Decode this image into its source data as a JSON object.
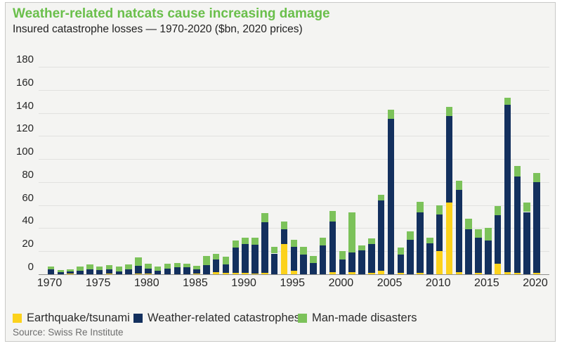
{
  "chart_data": {
    "type": "bar",
    "stacked": true,
    "title": "Weather-related natcats cause increasing damage",
    "subtitle": "Insured catastrophe losses — 1970-2020 ($bn, 2020 prices)",
    "source": "Source: Swiss Re Institute",
    "ylabel": "",
    "xlabel": "",
    "ylim": [
      0,
      180
    ],
    "y_ticks": [
      0,
      20,
      40,
      60,
      80,
      100,
      120,
      140,
      160,
      180
    ],
    "x_ticks": [
      1970,
      1975,
      1980,
      1985,
      1990,
      1995,
      2000,
      2005,
      2010,
      2015,
      2020
    ],
    "grid": "horizontal",
    "legend_position": "bottom",
    "years": [
      1970,
      1971,
      1972,
      1973,
      1974,
      1975,
      1976,
      1977,
      1978,
      1979,
      1980,
      1981,
      1982,
      1983,
      1984,
      1985,
      1986,
      1987,
      1988,
      1989,
      1990,
      1991,
      1992,
      1993,
      1994,
      1995,
      1996,
      1997,
      1998,
      1999,
      2000,
      2001,
      2002,
      2003,
      2004,
      2005,
      2006,
      2007,
      2008,
      2009,
      2010,
      2011,
      2012,
      2013,
      2014,
      2015,
      2016,
      2017,
      2018,
      2019,
      2020
    ],
    "series": [
      {
        "name": "Earthquake/tsunami",
        "color": "#fcd21c",
        "values": [
          0,
          0,
          0.5,
          0,
          0,
          0,
          0.5,
          0,
          0,
          0.5,
          0.5,
          0,
          0,
          0,
          0,
          0.5,
          0,
          2,
          1,
          1.5,
          1,
          0.5,
          1,
          0,
          26,
          3,
          0,
          0,
          0,
          2,
          0,
          2,
          0,
          1,
          3,
          0,
          1,
          0,
          1,
          0,
          20,
          62,
          2,
          0,
          1,
          0,
          9,
          2,
          1,
          0,
          1
        ]
      },
      {
        "name": "Weather-related catastrophes",
        "color": "#13305e",
        "values": [
          4,
          2,
          2,
          3,
          4.5,
          3.5,
          3.5,
          2.5,
          4,
          7,
          4.5,
          3,
          5,
          6,
          6,
          4,
          8,
          11,
          7.5,
          21.5,
          25,
          25,
          44,
          18,
          13,
          21,
          17,
          10,
          25,
          44,
          13,
          17,
          21,
          25,
          61,
          135,
          16,
          30,
          53,
          27,
          32,
          75,
          71,
          39,
          31,
          29,
          42,
          145,
          84,
          54,
          79
        ]
      },
      {
        "name": "Man-made disasters",
        "color": "#7cc25a",
        "values": [
          2.5,
          1.5,
          1.5,
          3.5,
          4,
          3,
          4,
          4,
          4.5,
          7,
          4,
          3.5,
          4,
          4,
          3,
          3,
          8,
          5,
          7,
          6,
          6,
          6,
          8,
          6,
          7,
          6,
          7,
          6,
          7,
          9,
          7,
          35,
          4,
          5,
          5,
          8,
          6,
          7,
          9,
          5,
          8,
          8,
          8,
          9,
          7,
          11,
          8,
          6,
          9,
          8,
          8
        ]
      }
    ]
  }
}
